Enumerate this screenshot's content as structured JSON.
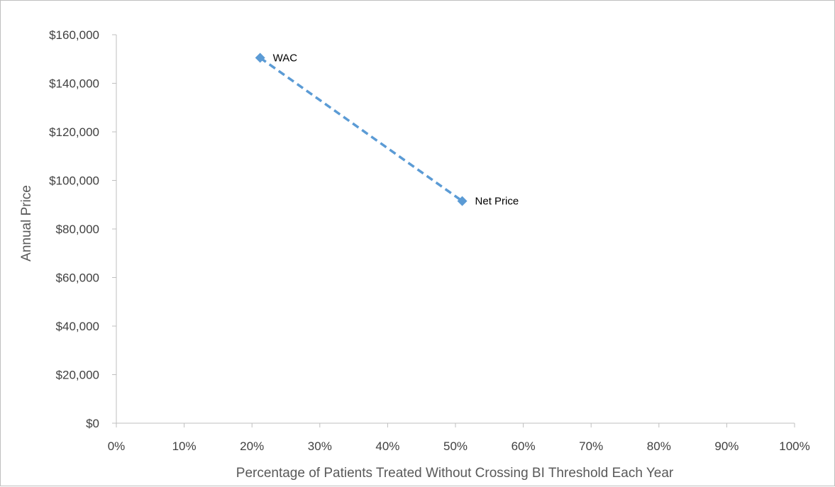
{
  "chart_data": {
    "type": "scatter",
    "title": "",
    "xlabel": "Percentage of Patients Treated Without Crossing BI Threshold Each Year",
    "ylabel": "Annual Price",
    "xlim": [
      0,
      100
    ],
    "ylim": [
      0,
      160000
    ],
    "x_ticks": [
      0,
      10,
      20,
      30,
      40,
      50,
      60,
      70,
      80,
      90,
      100
    ],
    "x_tick_labels": [
      "0%",
      "10%",
      "20%",
      "30%",
      "40%",
      "50%",
      "60%",
      "70%",
      "80%",
      "90%",
      "100%"
    ],
    "y_ticks": [
      0,
      20000,
      40000,
      60000,
      80000,
      100000,
      120000,
      140000,
      160000
    ],
    "y_tick_labels": [
      "$0",
      "$20,000",
      "$40,000",
      "$60,000",
      "$80,000",
      "$100,000",
      "$120,000",
      "$140,000",
      "$160,000"
    ],
    "grid": false,
    "legend": "none",
    "series": [
      {
        "points": [
          {
            "x": 21.2,
            "y": 150500,
            "label": "WAC"
          },
          {
            "x": 51.0,
            "y": 91500,
            "label": "Net Price"
          }
        ],
        "color": "#5b9bd5",
        "marker": "diamond",
        "line_style": "dashed"
      }
    ]
  }
}
